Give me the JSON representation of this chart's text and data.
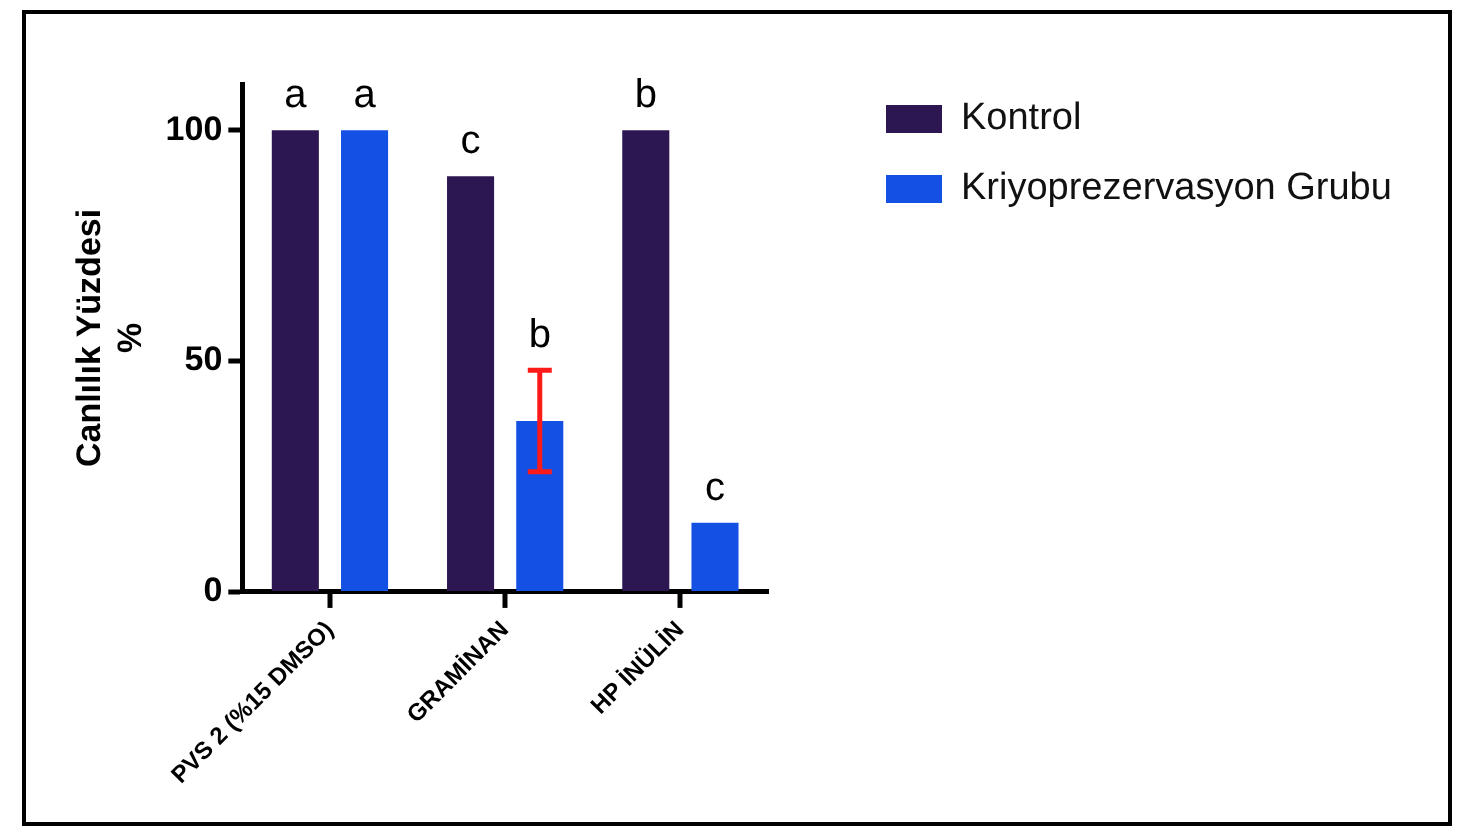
{
  "chart_data": {
    "type": "bar",
    "categories": [
      "PVS 2 (%15 DMSO)",
      "GRAMİNAN",
      "HP İNÜLİN"
    ],
    "series": [
      {
        "name": "Kontrol",
        "color": "#2d1752",
        "values": [
          100,
          90,
          100
        ],
        "value_labels": [
          "a",
          "c",
          "b"
        ]
      },
      {
        "name": "Kriyoprezervasyon Grubu",
        "color": "#1450e3",
        "values": [
          100,
          37,
          15
        ],
        "errors": [
          null,
          11,
          null
        ],
        "value_labels": [
          "a",
          "b",
          "c"
        ]
      }
    ],
    "ylabel": "Canlılık Yüzdesi\n%",
    "ylim": [
      0,
      110
    ],
    "yticks": [
      0,
      50,
      100
    ],
    "grid": false,
    "legend": "top right"
  }
}
